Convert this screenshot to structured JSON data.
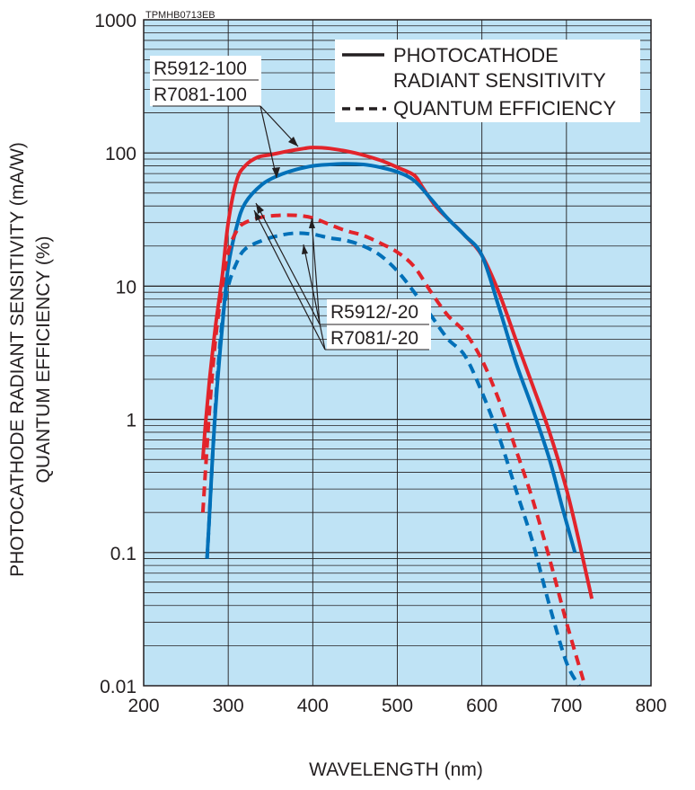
{
  "chart_data": {
    "type": "line",
    "code": "TPMHB0713EB",
    "xlabel": "WAVELENGTH (nm)",
    "ylabel": [
      "PHOTOCATHODE RADIANT SENSITIVITY (mA/W)",
      "QUANTUM EFFICIENCY (%)"
    ],
    "xlim": [
      200,
      800
    ],
    "ylim": [
      0.01,
      1000
    ],
    "yscale": "log",
    "x_ticks": [
      "200",
      "300",
      "400",
      "500",
      "600",
      "700",
      "800"
    ],
    "y_ticks": [
      "0.01",
      "0.1",
      "1",
      "10",
      "100",
      "1000"
    ],
    "colors": {
      "plot_bg": "#bfe3f5",
      "red": "#e2242b",
      "blue": "#0070b8",
      "grid": "#231f20"
    },
    "legend": {
      "solid_label": [
        "PHOTOCATHODE",
        "RADIANT SENSITIVITY"
      ],
      "dashed_label": "QUANTUM EFFICIENCY"
    },
    "labels": {
      "radiant_group": [
        "R5912-100",
        "R7081-100"
      ],
      "qe_group": [
        "R5912/-20",
        "R7081/-20"
      ]
    },
    "series": [
      {
        "name": "R5912-100 / R7081-100 radiant sensitivity",
        "color": "red",
        "style": "solid",
        "x": [
          270,
          273,
          278,
          285,
          293,
          300,
          310,
          320,
          335,
          350,
          370,
          390,
          400,
          420,
          450,
          480,
          500,
          520,
          530,
          545,
          560,
          580,
          600,
          620,
          640,
          660,
          680,
          700,
          715,
          730
        ],
        "y": [
          0.5,
          0.9,
          2,
          5,
          12,
          30,
          62,
          80,
          93,
          97,
          103,
          108,
          110,
          108,
          100,
          88,
          78,
          68,
          55,
          40,
          32,
          24,
          17,
          9,
          4,
          1.8,
          0.8,
          0.3,
          0.12,
          0.045
        ]
      },
      {
        "name": "R5912 / R7081 radiant sensitivity",
        "color": "blue",
        "style": "solid",
        "x": [
          275,
          278,
          282,
          287,
          293,
          300,
          310,
          320,
          340,
          360,
          380,
          400,
          420,
          440,
          460,
          480,
          500,
          520,
          540,
          560,
          580,
          600,
          620,
          640,
          660,
          680,
          695,
          710
        ],
        "y": [
          0.09,
          0.2,
          0.6,
          1.8,
          5,
          14,
          28,
          42,
          58,
          68,
          75,
          80,
          82,
          83,
          82,
          78,
          72,
          62,
          45,
          32,
          24,
          17,
          7,
          2.7,
          1.2,
          0.5,
          0.22,
          0.1
        ]
      },
      {
        "name": "R5912-100 / R7081-100 quantum efficiency",
        "color": "red",
        "style": "dashed",
        "x": [
          270,
          273,
          278,
          285,
          293,
          300,
          310,
          320,
          340,
          360,
          380,
          400,
          420,
          440,
          460,
          480,
          500,
          520,
          540,
          560,
          580,
          600,
          620,
          640,
          660,
          680,
          700,
          720
        ],
        "y": [
          0.2,
          0.4,
          1.2,
          4,
          10,
          18,
          26,
          30,
          33,
          34,
          34,
          32.5,
          29,
          26,
          24,
          21,
          18,
          14,
          9,
          6,
          4.5,
          2.8,
          1.4,
          0.6,
          0.25,
          0.09,
          0.03,
          0.011
        ]
      },
      {
        "name": "R5912 / R7081 quantum efficiency",
        "color": "blue",
        "style": "dashed",
        "x": [
          275,
          278,
          282,
          287,
          293,
          300,
          310,
          320,
          340,
          360,
          380,
          400,
          420,
          440,
          460,
          480,
          500,
          520,
          540,
          560,
          580,
          600,
          620,
          640,
          660,
          680,
          700,
          715
        ],
        "y": [
          0.09,
          0.2,
          0.6,
          2,
          5.5,
          10,
          15,
          19,
          22,
          24,
          25,
          24.5,
          23,
          22,
          20,
          17,
          13,
          9,
          6,
          4,
          3,
          1.6,
          0.75,
          0.3,
          0.12,
          0.04,
          0.015,
          0.01
        ]
      }
    ]
  }
}
